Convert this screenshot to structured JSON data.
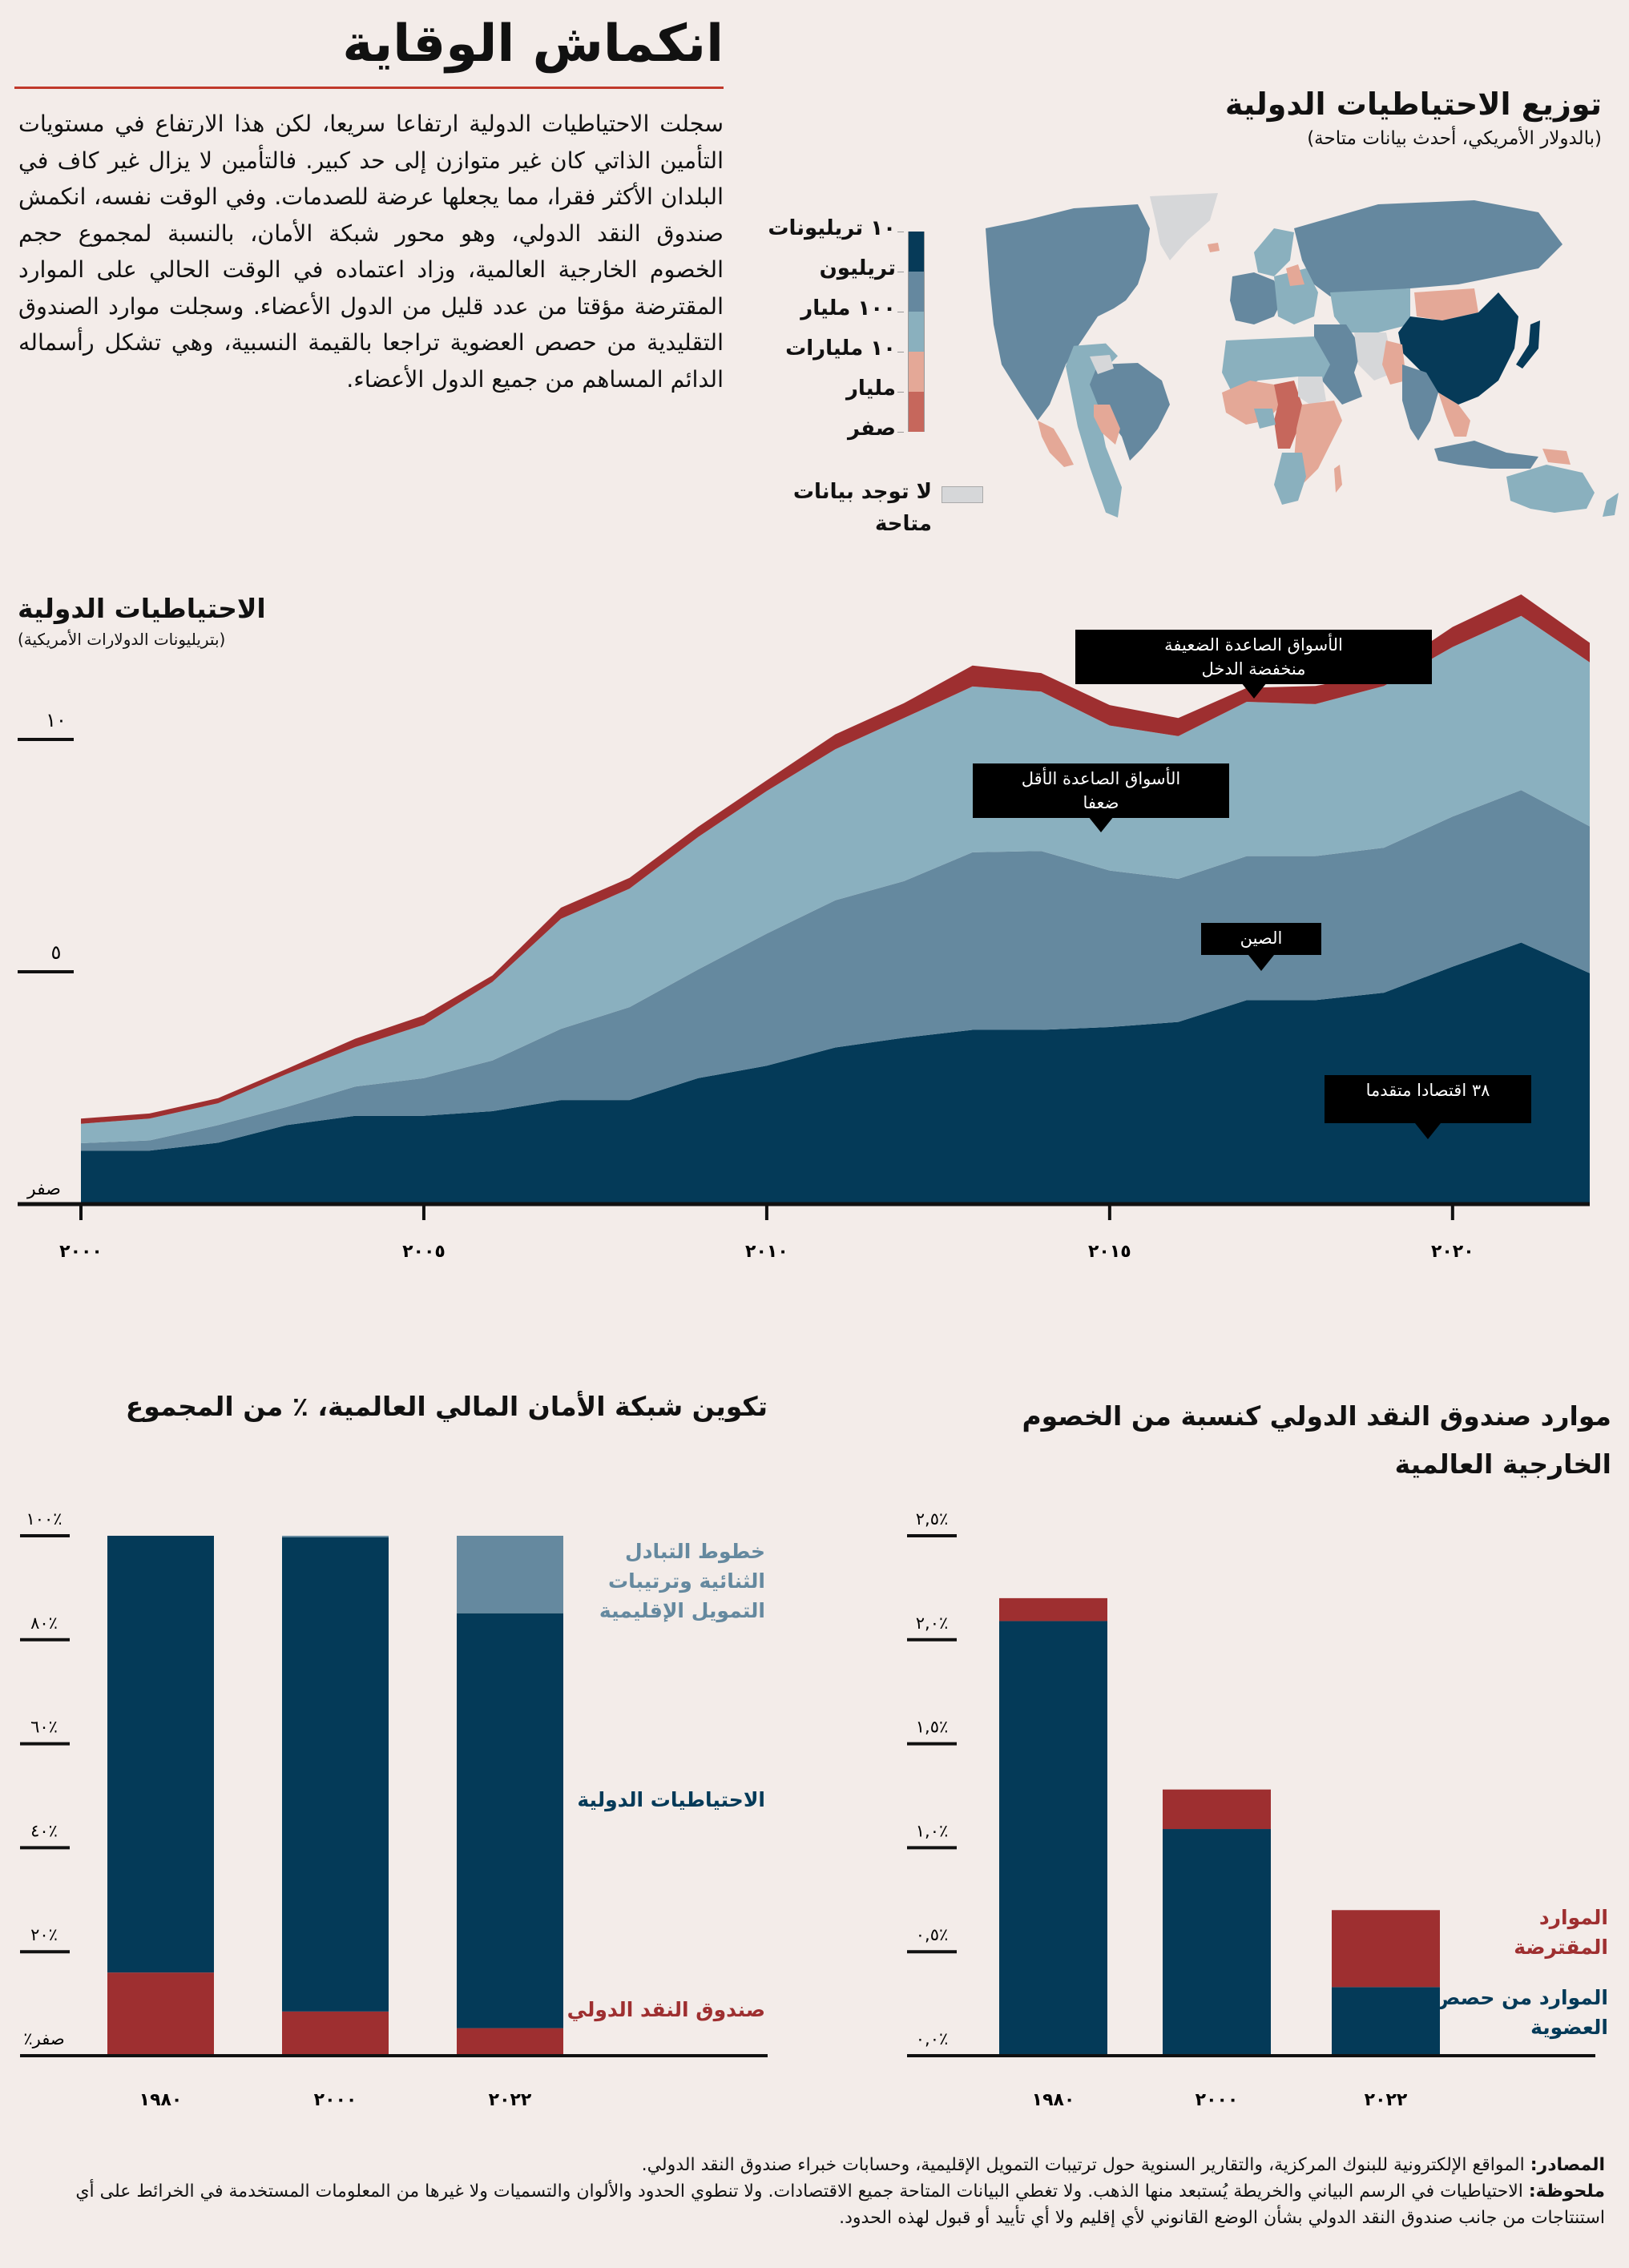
{
  "header": {
    "title": "انكماش الوقاية",
    "intro": "سجلت الاحتياطيات الدولية ارتفاعا سريعا، لكن هذا الارتفاع في مستويات التأمين الذاتي كان غير متوازن إلى حد كبير. فالتأمين لا يزال غير كاف في البلدان الأكثر فقرا، مما يجعلها عرضة للصدمات. وفي الوقت نفسه، انكمش صندوق النقد الدولي، وهو محور شبكة الأمان، بالنسبة لمجموع حجم الخصوم الخارجية العالمية، وزاد اعتماده في الوقت الحالي على الموارد المقترضة مؤقتا من عدد قليل من الدول الأعضاء. وسجلت موارد الصندوق التقليدية من حصص العضوية تراجعا بالقيمة النسبية، وهي تشكل رأسماله الدائم المساهم من جميع الدول الأعضاء."
  },
  "map": {
    "title": "توزيع الاحتياطيات الدولية",
    "subtitle": "(بالدولار الأمريكي، أحدث بيانات متاحة)",
    "legend": [
      {
        "label": "١٠ تريليونات",
        "color": "#063a58"
      },
      {
        "label": "تريليون",
        "color": "#65889f"
      },
      {
        "label": "١٠٠ مليار",
        "color": "#8ab0be"
      },
      {
        "label": "١٠ مليارات",
        "color": "#e4a897"
      },
      {
        "label": "مليار",
        "color": "#c6675c"
      },
      {
        "label": "صفر",
        "color": null
      }
    ],
    "no_data": {
      "label_line1": "لا توجد بيانات",
      "label_line2": "متاحة",
      "color": "#d6d7d9"
    }
  },
  "chart_data": [
    {
      "type": "area",
      "stacked": true,
      "title": "الاحتياطيات الدولية",
      "subtitle": "(بتريليونات الدولارات الأمريكية)",
      "xlabel": "",
      "ylabel": "بتريليونات الدولارات الأمريكية",
      "x": [
        2000,
        2001,
        2002,
        2003,
        2004,
        2005,
        2006,
        2007,
        2008,
        2009,
        2010,
        2011,
        2012,
        2013,
        2014,
        2015,
        2016,
        2017,
        2018,
        2019,
        2020,
        2021,
        2022
      ],
      "xticks": [
        {
          "value": 2000,
          "label": "٢٠٠٠"
        },
        {
          "value": 2005,
          "label": "٢٠٠٥"
        },
        {
          "value": 2010,
          "label": "٢٠١٠"
        },
        {
          "value": 2015,
          "label": "٢٠١٥"
        },
        {
          "value": 2020,
          "label": "٢٠٢٠"
        }
      ],
      "yticks": [
        {
          "value": 0,
          "label": "صفر"
        },
        {
          "value": 5,
          "label": "٥"
        },
        {
          "value": 10,
          "label": "١٠"
        }
      ],
      "ylim": [
        0,
        13.5
      ],
      "xlim": [
        2000,
        2022
      ],
      "series": [
        {
          "name": "٣٨ اقتصادا متقدما",
          "color": "#043a58",
          "values": [
            1.15,
            1.15,
            1.32,
            1.7,
            1.9,
            1.9,
            2.0,
            2.24,
            2.24,
            2.71,
            2.98,
            3.37,
            3.58,
            3.75,
            3.75,
            3.81,
            3.92,
            4.39,
            4.39,
            4.55,
            5.11,
            5.63,
            4.97
          ]
        },
        {
          "name": "الصين",
          "color": "#65899f",
          "values": [
            0.16,
            0.22,
            0.38,
            0.39,
            0.63,
            0.81,
            1.09,
            1.53,
            2.0,
            2.34,
            2.84,
            3.17,
            3.37,
            3.82,
            3.85,
            3.37,
            3.08,
            3.1,
            3.1,
            3.12,
            3.23,
            3.28,
            3.16
          ]
        },
        {
          "name": "الأسواق الصاعدة الأقل ضعفا",
          "color": "#8ab0bf",
          "values": [
            0.42,
            0.47,
            0.47,
            0.71,
            0.85,
            1.15,
            1.69,
            2.37,
            2.55,
            2.85,
            3.07,
            3.25,
            3.51,
            3.57,
            3.43,
            3.12,
            3.07,
            3.32,
            3.27,
            3.48,
            3.65,
            3.75,
            3.53
          ]
        },
        {
          "name": "الأسواق الصاعدة الضعيفة منخفضة الدخل",
          "color": "#9e2f30",
          "values": [
            0.11,
            0.11,
            0.11,
            0.11,
            0.18,
            0.2,
            0.14,
            0.24,
            0.23,
            0.22,
            0.23,
            0.32,
            0.32,
            0.45,
            0.4,
            0.44,
            0.39,
            0.3,
            0.39,
            0.28,
            0.43,
            0.46,
            0.42
          ]
        }
      ],
      "annotations": [
        {
          "text_line1": "الأسواق الصاعدة الضعيفة",
          "text_line2": "منخفضة الدخل",
          "series": 3
        },
        {
          "text_line1": "الأسواق الصاعدة الأقل",
          "text_line2": "ضعفا",
          "series": 2
        },
        {
          "text_line1": "الصين",
          "text_line2": "",
          "series": 1
        },
        {
          "text_line1": "٣٨ اقتصادا متقدما",
          "text_line2": "",
          "series": 0
        }
      ],
      "grid": false,
      "legend": "inline-annotations"
    },
    {
      "type": "bar",
      "stacked": true,
      "title": "تكوين شبكة الأمان المالي العالمية، ٪ من المجموع",
      "categories": [
        "١٩٨٠",
        "٢٠٠٠",
        "٢٠٢٢"
      ],
      "ylim": [
        0,
        100
      ],
      "yticks": [
        {
          "value": 0,
          "label": "صفر٪"
        },
        {
          "value": 20,
          "label": "٪٢٠"
        },
        {
          "value": 40,
          "label": "٪٤٠"
        },
        {
          "value": 60,
          "label": "٪٦٠"
        },
        {
          "value": 80,
          "label": "٪٨٠"
        },
        {
          "value": 100,
          "label": "٪١٠٠"
        }
      ],
      "series": [
        {
          "name": "صندوق النقد الدولي",
          "color": "#9e2f30",
          "values": [
            16.0,
            8.5,
            5.3
          ]
        },
        {
          "name": "الاحتياطيات الدولية",
          "color": "#043a58",
          "values": [
            84.0,
            91.2,
            79.8
          ]
        },
        {
          "name": "خطوط التبادل الثنائية وترتيبات التمويل الإقليمية",
          "color": "#65899f",
          "values": [
            0.0,
            0.3,
            14.9
          ]
        }
      ],
      "legend": "right",
      "grid": false
    },
    {
      "type": "bar",
      "stacked": true,
      "title": "موارد صندوق النقد الدولي كنسبة من الخصوم الخارجية العالمية",
      "categories": [
        "١٩٨٠",
        "٢٠٠٠",
        "٢٠٢٢"
      ],
      "ylim": [
        0,
        2.5
      ],
      "yticks": [
        {
          "value": 0,
          "label": "٪٠,٠"
        },
        {
          "value": 0.5,
          "label": "٪٠,٥"
        },
        {
          "value": 1.0,
          "label": "٪١,٠"
        },
        {
          "value": 1.5,
          "label": "٪١,٥"
        },
        {
          "value": 2.0,
          "label": "٪٢,٠"
        },
        {
          "value": 2.5,
          "label": "٪٢,٥"
        }
      ],
      "series": [
        {
          "name": "الموارد من حصص العضوية",
          "color": "#043a58",
          "values": [
            2.09,
            1.09,
            0.33
          ]
        },
        {
          "name": "الموارد المقترضة",
          "color": "#9e2f30",
          "values": [
            0.11,
            0.19,
            0.37
          ]
        }
      ],
      "legend": "right",
      "grid": false
    }
  ],
  "labels": {
    "bar1_swap_l1": "خطوط التبادل",
    "bar1_swap_l2": "الثنائية وترتيبات",
    "bar1_swap_l3": "التمويل الإقليمية",
    "bar1_reserves": "الاحتياطيات الدولية",
    "bar1_imf": "صندوق النقد الدولي",
    "bar2_title_l1": "موارد صندوق النقد الدولي كنسبة من الخصوم",
    "bar2_title_l2": "الخارجية العالمية",
    "bar2_borrowed_l1": "الموارد",
    "bar2_borrowed_l2": "المقترضة",
    "bar2_quota_l1": "الموارد من حصص",
    "bar2_quota_l2": "العضوية"
  },
  "footer": {
    "sources_label": "المصادر:",
    "sources": " المواقع الإلكترونية للبنوك المركزية، والتقارير السنوية حول ترتيبات التمويل الإقليمية، وحسابات خبراء صندوق النقد الدولي.",
    "note_label": "ملحوظة:",
    "note": " الاحتياطيات في الرسم البياني والخريطة يُستبعد منها الذهب. ولا تغطي البيانات المتاحة جميع الاقتصادات. ولا تنطوي الحدود والألوان والتسميات ولا غيرها من المعلومات المستخدمة في الخرائط على أي استنتاجات من جانب صندوق النقد الدولي بشأن الوضع القانوني لأي إقليم ولا أي تأييد أو قبول لهذه الحدود."
  }
}
